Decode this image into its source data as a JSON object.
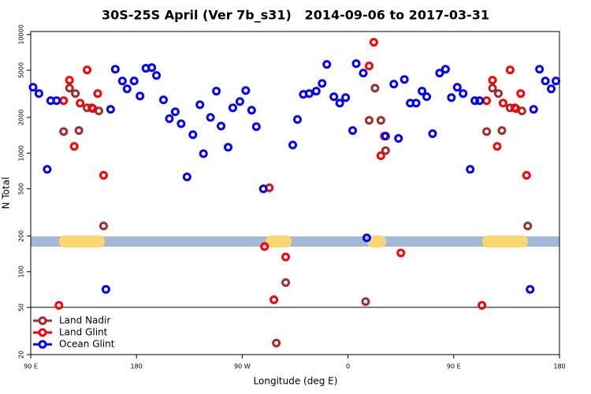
{
  "chart_data": {
    "type": "scatter",
    "title": "30S-25S April (Ver 7b_s31)   2014-09-06 to 2017-03-31",
    "xlabel": "Longitude (deg E)",
    "ylabel": "N Total",
    "xlim": [
      90,
      540
    ],
    "xticks": [
      {
        "value": 90,
        "label": "90 E"
      },
      180,
      {
        "value": 270,
        "label": "90 W"
      },
      {
        "value": 360,
        "label": "0"
      },
      {
        "value": 450,
        "label": "90 E"
      },
      {
        "value": 540,
        "label": "180"
      }
    ],
    "ylim": [
      20,
      10600
    ],
    "ylog": true,
    "yticks": [
      20,
      50,
      100,
      200,
      500,
      1000,
      2000,
      5000,
      10000
    ],
    "legend": "lower left",
    "series": [
      {
        "name": "Land Nadir",
        "color": "#a52a2a",
        "x": [
          118,
          123,
          128,
          131,
          138,
          143,
          148,
          152,
          299,
          307,
          375,
          378,
          383,
          388,
          392,
          478,
          483,
          488,
          491,
          498,
          503,
          508,
          513
        ],
        "values": [
          1520,
          3530,
          3180,
          1550,
          2410,
          2370,
          2270,
          243,
          25,
          81,
          56,
          1890,
          3530,
          1890,
          1050,
          1520,
          3530,
          3180,
          1550,
          2410,
          2370,
          2270,
          243
        ]
      },
      {
        "name": "Land Glint",
        "color": "#ff0000",
        "x": [
          114,
          118,
          123,
          127,
          132,
          138,
          142,
          147,
          152,
          289,
          293,
          297,
          307,
          378,
          382,
          388,
          391,
          405,
          474,
          478,
          483,
          487,
          492,
          498,
          502,
          507,
          512
        ],
        "values": [
          52,
          2770,
          4120,
          1140,
          2640,
          5030,
          2410,
          3180,
          650,
          163,
          510,
          58,
          133,
          5430,
          8600,
          950,
          1390,
          144,
          52,
          2770,
          4120,
          1140,
          2640,
          5030,
          2410,
          3180,
          650
        ]
      },
      {
        "name": "Ocean Glint",
        "color": "#0000ff",
        "x": [
          92,
          97,
          104,
          107,
          112,
          154,
          158,
          162,
          168,
          172,
          178,
          183,
          188,
          193,
          197,
          203,
          208,
          213,
          218,
          223,
          228,
          234,
          237,
          243,
          248,
          252,
          258,
          262,
          268,
          273,
          278,
          282,
          288,
          313,
          317,
          322,
          327,
          333,
          338,
          342,
          348,
          353,
          358,
          364,
          367,
          373,
          376,
          392,
          399,
          403,
          408,
          413,
          418,
          423,
          427,
          432,
          438,
          443,
          448,
          453,
          458,
          464,
          468,
          472,
          515,
          518,
          523,
          528,
          533,
          537
        ],
        "values": [
          3590,
          3180,
          730,
          2770,
          2770,
          71,
          2340,
          5100,
          4060,
          3480,
          4060,
          3030,
          5190,
          5260,
          4520,
          2810,
          1950,
          2230,
          1770,
          630,
          1430,
          2560,
          990,
          2000,
          3330,
          1690,
          1120,
          2410,
          2720,
          3370,
          2300,
          1670,
          500,
          1170,
          1920,
          3130,
          3180,
          3330,
          3870,
          5600,
          2990,
          2640,
          2940,
          1550,
          5680,
          4730,
          193,
          1390,
          3820,
          1330,
          4180,
          2640,
          2640,
          3330,
          2990,
          1460,
          4730,
          5100,
          2940,
          3590,
          3180,
          730,
          2770,
          2770,
          71,
          2340,
          5100,
          4060,
          3480,
          4060
        ]
      }
    ]
  }
}
